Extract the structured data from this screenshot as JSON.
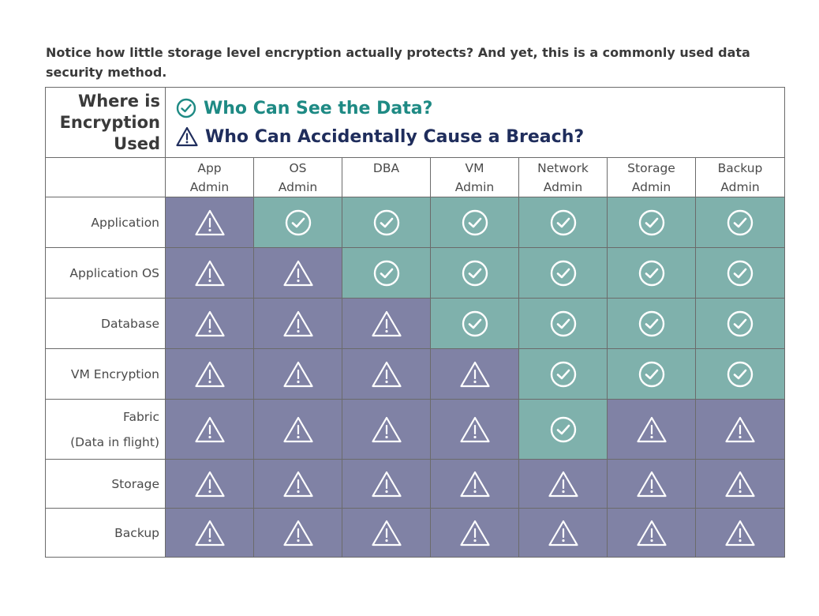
{
  "intro": "Notice how little storage level encryption actually protects? And yet, this is a commonly used data security method.",
  "corner_title": [
    "Where is",
    "Encryption",
    "Used"
  ],
  "legend": {
    "see_label": "Who Can See the Data?",
    "see_icon": "check-circle-icon",
    "breach_label": "Who Can Accidentally Cause a Breach?",
    "breach_icon": "warning-triangle-icon"
  },
  "colors": {
    "see": "#7fb1ac",
    "breach": "#8082a5",
    "see_text": "#1e8a84",
    "breach_text": "#1f2d5c"
  },
  "columns": [
    [
      "App",
      "Admin"
    ],
    [
      "OS",
      "Admin"
    ],
    [
      "DBA"
    ],
    [
      "VM",
      "Admin"
    ],
    [
      "Network",
      "Admin"
    ],
    [
      "Storage",
      "Admin"
    ],
    [
      "Backup",
      "Admin"
    ]
  ],
  "rows": [
    {
      "label": [
        "Application"
      ],
      "cells": [
        "breach",
        "see",
        "see",
        "see",
        "see",
        "see",
        "see"
      ]
    },
    {
      "label": [
        "Application OS"
      ],
      "cells": [
        "breach",
        "breach",
        "see",
        "see",
        "see",
        "see",
        "see"
      ]
    },
    {
      "label": [
        "Database"
      ],
      "cells": [
        "breach",
        "breach",
        "breach",
        "see",
        "see",
        "see",
        "see"
      ]
    },
    {
      "label": [
        "VM Encryption"
      ],
      "cells": [
        "breach",
        "breach",
        "breach",
        "breach",
        "see",
        "see",
        "see"
      ]
    },
    {
      "label": [
        "Fabric",
        "(Data in flight)"
      ],
      "cells": [
        "breach",
        "breach",
        "breach",
        "breach",
        "see",
        "breach",
        "breach"
      ]
    },
    {
      "label": [
        "Storage"
      ],
      "cells": [
        "breach",
        "breach",
        "breach",
        "breach",
        "breach",
        "breach",
        "breach"
      ]
    },
    {
      "label": [
        "Backup"
      ],
      "cells": [
        "breach",
        "breach",
        "breach",
        "breach",
        "breach",
        "breach",
        "breach"
      ]
    }
  ]
}
